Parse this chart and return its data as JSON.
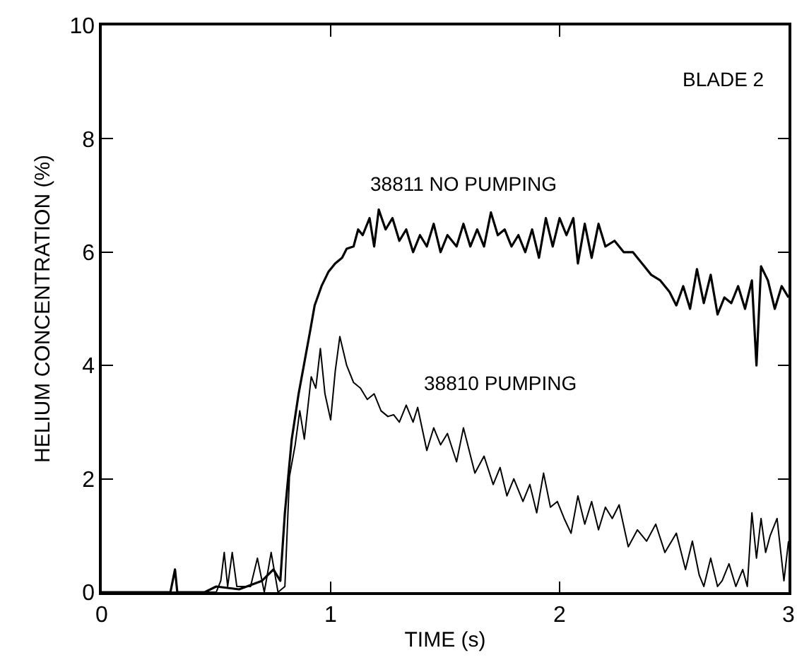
{
  "chart_data": {
    "type": "line",
    "xlabel": "TIME (s)",
    "ylabel": "HELIUM CONCENTRATION (%)",
    "annotations": [
      "BLADE 2"
    ],
    "xlim": [
      0,
      3
    ],
    "xticks": [
      0,
      1,
      2,
      3
    ],
    "ylim": [
      0,
      10
    ],
    "yticks": [
      0,
      2,
      4,
      6,
      8,
      10
    ],
    "grid": false,
    "legend": false,
    "marker": "none",
    "line_style": "solid",
    "series": [
      {
        "name": "38811 NO PUMPING",
        "color": "#000000",
        "x": [
          0,
          0.3,
          0.32,
          0.33,
          0.45,
          0.5,
          0.6,
          0.7,
          0.75,
          0.78,
          0.8,
          0.83,
          0.86,
          0.885,
          0.91,
          0.93,
          0.96,
          0.99,
          1.02,
          1.05,
          1.07,
          1.1,
          1.12,
          1.14,
          1.17,
          1.19,
          1.21,
          1.24,
          1.27,
          1.3,
          1.33,
          1.36,
          1.39,
          1.42,
          1.45,
          1.48,
          1.51,
          1.55,
          1.58,
          1.61,
          1.64,
          1.67,
          1.7,
          1.73,
          1.76,
          1.79,
          1.82,
          1.85,
          1.88,
          1.91,
          1.94,
          1.97,
          2.0,
          2.03,
          2.06,
          2.08,
          2.11,
          2.14,
          2.17,
          2.2,
          2.24,
          2.28,
          2.32,
          2.36,
          2.4,
          2.44,
          2.48,
          2.51,
          2.54,
          2.57,
          2.6,
          2.63,
          2.66,
          2.69,
          2.72,
          2.75,
          2.78,
          2.81,
          2.84,
          2.86,
          2.88,
          2.91,
          2.94,
          2.97,
          3.0
        ],
        "values": [
          0,
          0,
          0.4,
          0,
          0,
          0.1,
          0.05,
          0.2,
          0.4,
          0.2,
          1.4,
          2.7,
          3.5,
          4.05,
          4.6,
          5.06,
          5.4,
          5.65,
          5.8,
          5.9,
          6.06,
          6.1,
          6.4,
          6.3,
          6.6,
          6.1,
          6.75,
          6.4,
          6.6,
          6.2,
          6.4,
          6.0,
          6.3,
          6.1,
          6.5,
          6.0,
          6.3,
          6.1,
          6.5,
          6.1,
          6.4,
          6.1,
          6.7,
          6.3,
          6.4,
          6.1,
          6.3,
          6.0,
          6.4,
          5.9,
          6.6,
          6.1,
          6.6,
          6.3,
          6.6,
          5.8,
          6.5,
          5.9,
          6.5,
          6.1,
          6.2,
          6.0,
          6.0,
          5.8,
          5.6,
          5.5,
          5.3,
          5.06,
          5.4,
          5.0,
          5.7,
          5.1,
          5.6,
          4.9,
          5.2,
          5.1,
          5.4,
          5.0,
          5.5,
          4.0,
          5.75,
          5.5,
          5.0,
          5.4,
          5.2
        ]
      },
      {
        "name": "38810 PUMPING",
        "color": "#000000",
        "x": [
          0,
          0.3,
          0.5,
          0.52,
          0.535,
          0.55,
          0.57,
          0.59,
          0.65,
          0.68,
          0.71,
          0.74,
          0.77,
          0.8,
          0.82,
          0.845,
          0.865,
          0.885,
          0.915,
          0.935,
          0.955,
          0.975,
          1.0,
          1.02,
          1.04,
          1.07,
          1.1,
          1.13,
          1.16,
          1.19,
          1.22,
          1.25,
          1.275,
          1.3,
          1.33,
          1.36,
          1.38,
          1.42,
          1.45,
          1.48,
          1.51,
          1.55,
          1.58,
          1.63,
          1.67,
          1.71,
          1.74,
          1.77,
          1.8,
          1.84,
          1.87,
          1.9,
          1.93,
          1.96,
          1.99,
          2.02,
          2.05,
          2.08,
          2.11,
          2.14,
          2.17,
          2.2,
          2.23,
          2.26,
          2.3,
          2.34,
          2.38,
          2.42,
          2.46,
          2.51,
          2.55,
          2.58,
          2.61,
          2.63,
          2.66,
          2.69,
          2.71,
          2.74,
          2.77,
          2.8,
          2.82,
          2.84,
          2.86,
          2.88,
          2.9,
          2.92,
          2.95,
          2.98,
          3.0
        ],
        "values": [
          0,
          0,
          0,
          0.2,
          0.7,
          0.1,
          0.7,
          0.1,
          0.1,
          0.6,
          0,
          0.7,
          0,
          0.1,
          2.04,
          2.6,
          3.2,
          2.7,
          3.8,
          3.6,
          4.3,
          3.5,
          3.04,
          3.9,
          4.51,
          4.0,
          3.7,
          3.6,
          3.4,
          3.5,
          3.2,
          3.1,
          3.13,
          3.0,
          3.3,
          3.0,
          3.26,
          2.5,
          2.9,
          2.6,
          2.8,
          2.3,
          2.9,
          2.1,
          2.4,
          1.9,
          2.2,
          1.7,
          2.0,
          1.6,
          1.9,
          1.4,
          2.1,
          1.5,
          1.6,
          1.3,
          1.04,
          1.7,
          1.2,
          1.6,
          1.1,
          1.5,
          1.3,
          1.54,
          0.8,
          1.1,
          0.9,
          1.2,
          0.7,
          1.04,
          0.4,
          0.9,
          0.3,
          0.1,
          0.6,
          0.1,
          0.2,
          0.5,
          0.1,
          0.4,
          0.1,
          1.4,
          0.6,
          1.3,
          0.7,
          1.0,
          1.3,
          0.2,
          0.9
        ]
      }
    ]
  }
}
